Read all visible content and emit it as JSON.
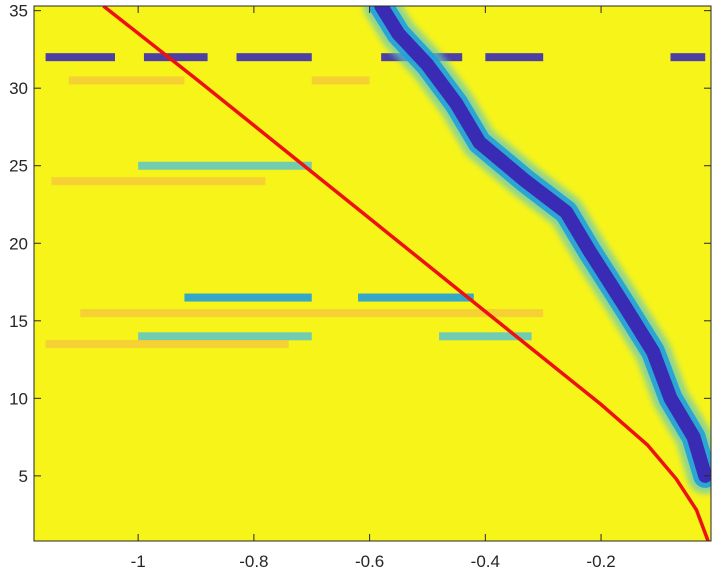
{
  "chart_data": {
    "type": "heatmap",
    "title": "",
    "xlabel": "",
    "ylabel": "",
    "xlim": [
      -1.18,
      -0.01
    ],
    "ylim": [
      0.8,
      35.3
    ],
    "x_ticks": [
      -1,
      -0.8,
      -0.6,
      -0.4,
      -0.2
    ],
    "x_tick_labels": [
      "-1",
      "-0.8",
      "-0.6",
      "-0.4",
      "-0.2"
    ],
    "y_ticks": [
      5,
      10,
      15,
      20,
      25,
      30,
      35
    ],
    "y_tick_labels": [
      "5",
      "10",
      "15",
      "20",
      "25",
      "30",
      "35"
    ],
    "grid": false,
    "colors": {
      "background": "#f7f41a",
      "low": "#3a2bb4",
      "mid": "#1fa0dc",
      "light": "#63c8c0",
      "warm": "#f5c63c",
      "curve": "#ee1111"
    },
    "ridge": {
      "name": "",
      "points": [
        [
          -0.58,
          35.3
        ],
        [
          -0.55,
          33.5
        ],
        [
          -0.5,
          31.5
        ],
        [
          -0.45,
          29
        ],
        [
          -0.41,
          26.5
        ],
        [
          -0.33,
          24
        ],
        [
          -0.26,
          22
        ],
        [
          -0.22,
          19.5
        ],
        [
          -0.16,
          16
        ],
        [
          -0.11,
          13
        ],
        [
          -0.08,
          10
        ],
        [
          -0.04,
          7.5
        ],
        [
          -0.02,
          5
        ]
      ]
    },
    "curve": {
      "name": "",
      "points": [
        [
          -1.06,
          35.3
        ],
        [
          -0.9,
          30.6
        ],
        [
          -0.8,
          27.6
        ],
        [
          -0.7,
          24.6
        ],
        [
          -0.6,
          21.6
        ],
        [
          -0.5,
          18.6
        ],
        [
          -0.4,
          15.6
        ],
        [
          -0.3,
          12.6
        ],
        [
          -0.2,
          9.6
        ],
        [
          -0.12,
          7
        ],
        [
          -0.07,
          4.8
        ],
        [
          -0.035,
          2.8
        ],
        [
          -0.015,
          0.8
        ]
      ]
    },
    "bands": [
      {
        "y": 32,
        "x_ranges": [
          [
            -1.16,
            -1.04
          ],
          [
            -0.99,
            -0.88
          ],
          [
            -0.83,
            -0.7
          ],
          [
            -0.58,
            -0.44
          ],
          [
            -0.4,
            -0.3
          ],
          [
            -0.08,
            -0.02
          ]
        ],
        "level": "low"
      },
      {
        "y": 30.5,
        "x_ranges": [
          [
            -1.12,
            -0.92
          ],
          [
            -0.7,
            -0.6
          ]
        ],
        "level": "warm"
      },
      {
        "y": 25,
        "x_ranges": [
          [
            -1.0,
            -0.7
          ]
        ],
        "level": "light"
      },
      {
        "y": 24,
        "x_ranges": [
          [
            -1.15,
            -0.78
          ]
        ],
        "level": "warm"
      },
      {
        "y": 16.5,
        "x_ranges": [
          [
            -0.92,
            -0.7
          ],
          [
            -0.62,
            -0.42
          ]
        ],
        "level": "mid"
      },
      {
        "y": 15.5,
        "x_ranges": [
          [
            -1.1,
            -0.3
          ]
        ],
        "level": "warm"
      },
      {
        "y": 14,
        "x_ranges": [
          [
            -1.0,
            -0.7
          ],
          [
            -0.48,
            -0.32
          ]
        ],
        "level": "light"
      },
      {
        "y": 13.5,
        "x_ranges": [
          [
            -1.16,
            -0.74
          ]
        ],
        "level": "warm"
      }
    ]
  }
}
